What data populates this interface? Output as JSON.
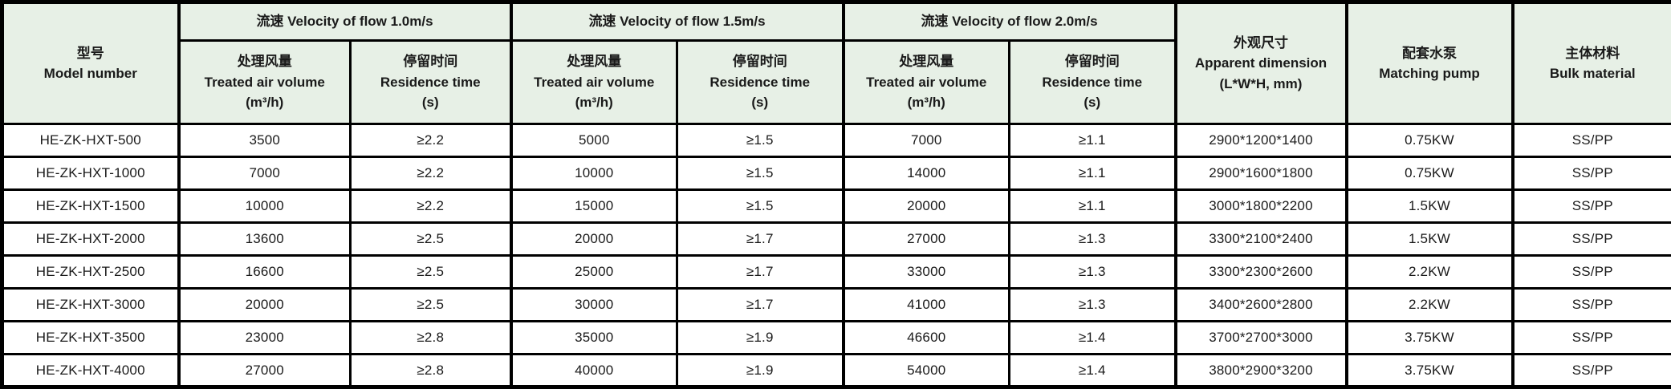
{
  "theme": {
    "header_bg": "#e7f0e6",
    "row_bg": "#ffffff",
    "border_color": "#000000",
    "text_color": "#1a1a1a"
  },
  "table": {
    "model_header": {
      "zh": "型号",
      "en": "Model number"
    },
    "velocity_groups": [
      {
        "title": "流速 Velocity of flow 1.0m/s"
      },
      {
        "title": "流速 Velocity of flow 1.5m/s"
      },
      {
        "title": "流速 Velocity of flow 2.0m/s"
      }
    ],
    "subheaders": {
      "air": {
        "zh": "处理风量",
        "en": "Treated air volume",
        "unit": "(m³/h)"
      },
      "res": {
        "zh": "停留时间",
        "en": "Residence time",
        "unit": "(s)"
      }
    },
    "dimension_header": {
      "zh": "外观尺寸",
      "en": "Apparent dimension",
      "unit": "(L*W*H, mm)"
    },
    "pump_header": {
      "zh": "配套水泵",
      "en": "Matching pump"
    },
    "material_header": {
      "zh": "主体材料",
      "en": "Bulk material"
    },
    "rows": [
      {
        "model": "HE-ZK-HXT-500",
        "v10_air": "3500",
        "v10_res": "≥2.2",
        "v15_air": "5000",
        "v15_res": "≥1.5",
        "v20_air": "7000",
        "v20_res": "≥1.1",
        "dimension": "2900*1200*1400",
        "pump": "0.75KW",
        "material": "SS/PP"
      },
      {
        "model": "HE-ZK-HXT-1000",
        "v10_air": "7000",
        "v10_res": "≥2.2",
        "v15_air": "10000",
        "v15_res": "≥1.5",
        "v20_air": "14000",
        "v20_res": "≥1.1",
        "dimension": "2900*1600*1800",
        "pump": "0.75KW",
        "material": "SS/PP"
      },
      {
        "model": "HE-ZK-HXT-1500",
        "v10_air": "10000",
        "v10_res": "≥2.2",
        "v15_air": "15000",
        "v15_res": "≥1.5",
        "v20_air": "20000",
        "v20_res": "≥1.1",
        "dimension": "3000*1800*2200",
        "pump": "1.5KW",
        "material": "SS/PP"
      },
      {
        "model": "HE-ZK-HXT-2000",
        "v10_air": "13600",
        "v10_res": "≥2.5",
        "v15_air": "20000",
        "v15_res": "≥1.7",
        "v20_air": "27000",
        "v20_res": "≥1.3",
        "dimension": "3300*2100*2400",
        "pump": "1.5KW",
        "material": "SS/PP"
      },
      {
        "model": "HE-ZK-HXT-2500",
        "v10_air": "16600",
        "v10_res": "≥2.5",
        "v15_air": "25000",
        "v15_res": "≥1.7",
        "v20_air": "33000",
        "v20_res": "≥1.3",
        "dimension": "3300*2300*2600",
        "pump": "2.2KW",
        "material": "SS/PP"
      },
      {
        "model": "HE-ZK-HXT-3000",
        "v10_air": "20000",
        "v10_res": "≥2.5",
        "v15_air": "30000",
        "v15_res": "≥1.7",
        "v20_air": "41000",
        "v20_res": "≥1.3",
        "dimension": "3400*2600*2800",
        "pump": "2.2KW",
        "material": "SS/PP"
      },
      {
        "model": "HE-ZK-HXT-3500",
        "v10_air": "23000",
        "v10_res": "≥2.8",
        "v15_air": "35000",
        "v15_res": "≥1.9",
        "v20_air": "46600",
        "v20_res": "≥1.4",
        "dimension": "3700*2700*3000",
        "pump": "3.75KW",
        "material": "SS/PP"
      },
      {
        "model": "HE-ZK-HXT-4000",
        "v10_air": "27000",
        "v10_res": "≥2.8",
        "v15_air": "40000",
        "v15_res": "≥1.9",
        "v20_air": "54000",
        "v20_res": "≥1.4",
        "dimension": "3800*2900*3200",
        "pump": "3.75KW",
        "material": "SS/PP"
      }
    ]
  }
}
